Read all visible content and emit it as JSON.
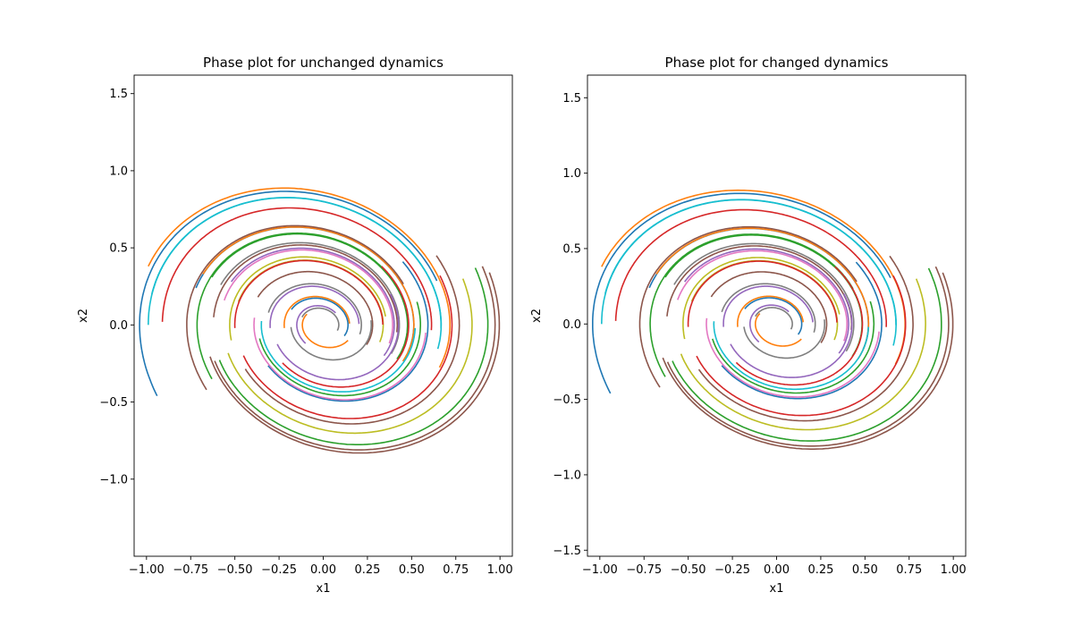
{
  "chart_data": [
    {
      "type": "line",
      "title": "Phase plot for unchanged dynamics",
      "xlabel": "x1",
      "ylabel": "x2",
      "xlim": [
        -1.07,
        1.07
      ],
      "ylim": [
        -1.5,
        1.62
      ],
      "xticks": [
        -1.0,
        -0.75,
        -0.5,
        -0.25,
        0.0,
        0.25,
        0.5,
        0.75,
        1.0
      ],
      "xtick_labels": [
        "−1.00",
        "−0.75",
        "−0.50",
        "−0.25",
        "0.00",
        "0.25",
        "0.50",
        "0.75",
        "1.00"
      ],
      "yticks": [
        -1.0,
        -0.5,
        0.0,
        0.5,
        1.0,
        1.5
      ],
      "ytick_labels": [
        "−1.0",
        "−0.5",
        "0.0",
        "0.5",
        "1.0",
        "1.5"
      ],
      "grid": false,
      "series_description": "38 spiral trajectories of a damped oscillator x1' = x2, x2' = -x1 - 0.25*x2, each integrated from its start point for 3.2 time units",
      "series": [
        {
          "color": "#1f77b4",
          "start": [
            -0.94,
            -0.46
          ]
        },
        {
          "color": "#17becf",
          "start": [
            -0.99,
            0.0
          ]
        },
        {
          "color": "#d62728",
          "start": [
            -0.91,
            0.02
          ]
        },
        {
          "color": "#ff7f0e",
          "start": [
            -0.99,
            0.38
          ]
        },
        {
          "color": "#17becf",
          "start": [
            -0.97,
            0.2
          ]
        },
        {
          "color": "#1f77b4",
          "start": [
            -0.72,
            0.24
          ]
        },
        {
          "color": "#ff7f0e",
          "start": [
            -0.68,
            0.33
          ]
        },
        {
          "color": "#2ca02c",
          "start": [
            -0.63,
            0.31
          ]
        },
        {
          "color": "#8c564b",
          "start": [
            -0.62,
            0.05
          ]
        },
        {
          "color": "#e377c2",
          "start": [
            -0.56,
            0.16
          ]
        },
        {
          "color": "#7f7f7f",
          "start": [
            -0.58,
            0.26
          ]
        },
        {
          "color": "#bcbd22",
          "start": [
            -0.48,
            0.15
          ]
        },
        {
          "color": "#9467bd",
          "start": [
            -0.52,
            0.28
          ]
        },
        {
          "color": "#8c564b",
          "start": [
            -0.37,
            0.18
          ]
        },
        {
          "color": "#7f7f7f",
          "start": [
            -0.31,
            0.08
          ]
        },
        {
          "color": "#1f77b4",
          "start": [
            -0.18,
            0.1
          ]
        },
        {
          "color": "#ff7f0e",
          "start": [
            -0.22,
            -0.02
          ]
        },
        {
          "color": "#7f7f7f",
          "start": [
            -0.12,
            0.05
          ]
        },
        {
          "color": "#9467bd",
          "start": [
            -0.3,
            -0.02
          ]
        },
        {
          "color": "#bcbd22",
          "start": [
            -0.52,
            -0.1
          ]
        },
        {
          "color": "#d62728",
          "start": [
            -0.5,
            -0.02
          ]
        },
        {
          "color": "#2ca02c",
          "start": [
            -0.63,
            -0.35
          ]
        },
        {
          "color": "#8c564b",
          "start": [
            -0.66,
            -0.42
          ]
        },
        {
          "color": "#d62728",
          "start": [
            0.33,
            0.38
          ]
        },
        {
          "color": "#1f77b4",
          "start": [
            0.45,
            0.41
          ]
        },
        {
          "color": "#2ca02c",
          "start": [
            0.53,
            0.15
          ]
        },
        {
          "color": "#17becf",
          "start": [
            0.52,
            -0.02
          ]
        },
        {
          "color": "#9467bd",
          "start": [
            0.38,
            0.2
          ]
        },
        {
          "color": "#bcbd22",
          "start": [
            0.79,
            0.3
          ]
        },
        {
          "color": "#2ca02c",
          "start": [
            0.86,
            0.37
          ]
        },
        {
          "color": "#8c564b",
          "start": [
            0.9,
            0.38
          ]
        },
        {
          "color": "#8c564b",
          "start": [
            0.94,
            0.34
          ]
        },
        {
          "color": "#8c564b",
          "start": [
            0.64,
            0.45
          ]
        },
        {
          "color": "#d62728",
          "start": [
            0.66,
            0.32
          ]
        },
        {
          "color": "#e377c2",
          "start": [
            0.58,
            -0.05
          ]
        },
        {
          "color": "#7f7f7f",
          "start": [
            0.27,
            0.03
          ]
        },
        {
          "color": "#ff7f0e",
          "start": [
            0.14,
            -0.1
          ]
        },
        {
          "color": "#9467bd",
          "start": [
            -0.1,
            -0.12
          ]
        }
      ]
    },
    {
      "type": "line",
      "title": "Phase plot for changed dynamics",
      "xlabel": "x1",
      "ylabel": "x2",
      "xlim": [
        -1.07,
        1.07
      ],
      "ylim": [
        -1.54,
        1.65
      ],
      "xticks": [
        -1.0,
        -0.75,
        -0.5,
        -0.25,
        0.0,
        0.25,
        0.5,
        0.75,
        1.0
      ],
      "xtick_labels": [
        "−1.00",
        "−0.75",
        "−0.50",
        "−0.25",
        "0.00",
        "0.25",
        "0.50",
        "0.75",
        "1.00"
      ],
      "yticks": [
        -1.5,
        -1.0,
        -0.5,
        0.0,
        0.5,
        1.0,
        1.5
      ],
      "ytick_labels": [
        "−1.5",
        "−1.0",
        "−0.5",
        "0.0",
        "0.5",
        "1.0",
        "1.5"
      ],
      "grid": false,
      "series_description": "Same 38 trajectories as the left panel with slightly modified dynamics (outer loops reach about -1.38 instead of -1.35)",
      "series": "same start points and colors as the left panel"
    }
  ]
}
